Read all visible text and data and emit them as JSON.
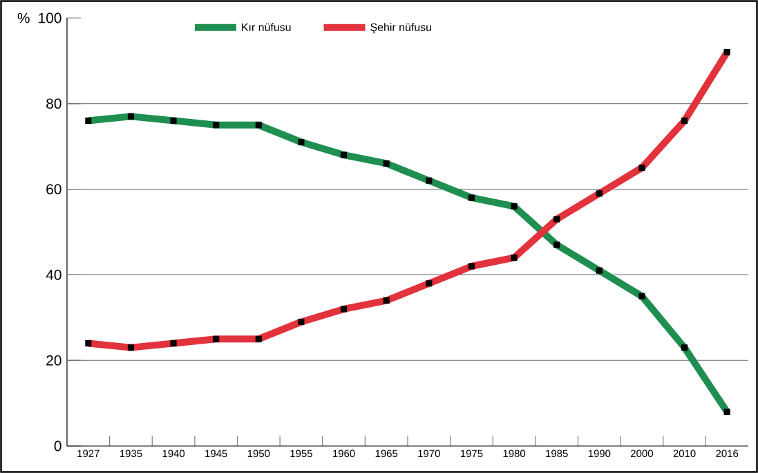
{
  "chart_data": {
    "type": "line",
    "ylabel": "%",
    "categories": [
      "1927",
      "1935",
      "1940",
      "1945",
      "1950",
      "1955",
      "1960",
      "1965",
      "1970",
      "1975",
      "1980",
      "1985",
      "1990",
      "2000",
      "2010",
      "2016"
    ],
    "series": [
      {
        "name": "Kır nüfusu",
        "color": "#1e8f50",
        "values": [
          76,
          77,
          76,
          75,
          75,
          71,
          68,
          66,
          62,
          58,
          56,
          47,
          41,
          35,
          23,
          8
        ]
      },
      {
        "name": "Şehir nüfusu",
        "color": "#e2323c",
        "values": [
          24,
          23,
          24,
          25,
          25,
          29,
          32,
          34,
          38,
          42,
          44,
          53,
          59,
          65,
          76,
          92
        ]
      }
    ],
    "ylim": [
      0,
      100
    ],
    "yticks": [
      0,
      20,
      40,
      60,
      80,
      100
    ],
    "grid": "y",
    "legend": "top",
    "marker": "square",
    "line_style": "solid"
  }
}
